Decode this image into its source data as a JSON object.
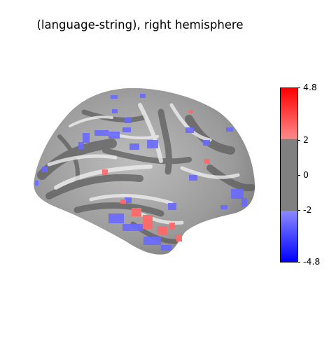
{
  "figure": {
    "title": "(language-string), right hemisphere",
    "hemisphere": "right",
    "view": "lateral inflated cortical surface",
    "positive_cluster_color": "#ff6a6a",
    "negative_cluster_color": "#6a6aff"
  },
  "colorbar": {
    "vmin": -4.8,
    "vmax": 4.8,
    "threshold": 2,
    "tick_labels": [
      "4.8",
      "2",
      "0",
      "-2",
      "-4.8"
    ],
    "colors": {
      "max": "#ff0000",
      "threshold_pos": "#ff8a8a",
      "mid": "#808080",
      "threshold_neg": "#8a8aff",
      "min": "#0000ff"
    }
  }
}
